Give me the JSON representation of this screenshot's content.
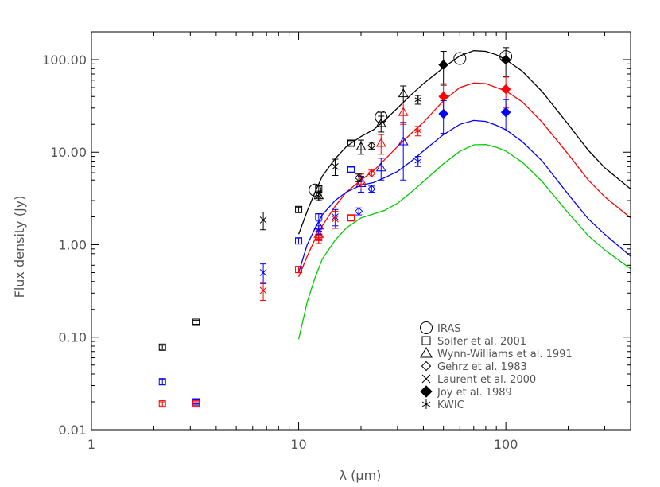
{
  "chart_data": {
    "type": "scatter",
    "title": "",
    "xlabel": "λ (μm)",
    "ylabel": "Flux density (Jy)",
    "xscale": "log",
    "yscale": "log",
    "xlim": [
      1,
      400
    ],
    "ylim": [
      0.01,
      200
    ],
    "x_ticks": [
      {
        "value": 1,
        "label": "1"
      },
      {
        "value": 10,
        "label": "10"
      },
      {
        "value": 100,
        "label": "100"
      }
    ],
    "y_ticks": [
      {
        "value": 0.01,
        "label": "0.01"
      },
      {
        "value": 0.1,
        "label": "0.10"
      },
      {
        "value": 1,
        "label": "1.00"
      },
      {
        "value": 10,
        "label": "10.00"
      },
      {
        "value": 100,
        "label": "100.00"
      }
    ],
    "grid": false,
    "legend_position": "bottom-right",
    "legend": [
      {
        "symbol": "circle",
        "label": "IRAS"
      },
      {
        "symbol": "square",
        "label": "Soifer et al. 2001"
      },
      {
        "symbol": "triangle",
        "label": "Wynn-Williams et al. 1991"
      },
      {
        "symbol": "diamond",
        "label": "Gehrz et al. 1983"
      },
      {
        "symbol": "cross",
        "label": "Laurent et al. 2000"
      },
      {
        "symbol": "filled-diamond",
        "label": "Joy et al. 1989"
      },
      {
        "symbol": "asterisk",
        "label": "KWIC"
      }
    ],
    "colors": {
      "black": "#000000",
      "red": "#ff0000",
      "blue": "#0000ff",
      "green": "#00cc00"
    },
    "curves": [
      {
        "color": "black",
        "x": [
          10,
          11,
          12,
          13,
          15,
          17,
          20,
          23,
          26,
          30,
          35,
          40,
          50,
          60,
          70,
          80,
          90,
          100,
          120,
          150,
          200,
          250,
          300,
          400
        ],
        "y": [
          1.3,
          2.3,
          3.7,
          5.5,
          8.5,
          11.5,
          14.8,
          17.5,
          22,
          30,
          42,
          55,
          82,
          110,
          125,
          123,
          113,
          100,
          75,
          45,
          20,
          10.5,
          6.8,
          4.0
        ]
      },
      {
        "color": "red",
        "x": [
          10,
          11,
          12,
          13,
          15,
          17,
          20,
          23,
          26,
          30,
          35,
          40,
          50,
          60,
          70,
          80,
          90,
          100,
          120,
          150,
          200,
          250,
          300,
          400
        ],
        "y": [
          0.45,
          0.75,
          1.15,
          1.6,
          2.6,
          3.7,
          5.0,
          6.3,
          8.3,
          11.5,
          16,
          21,
          36,
          50,
          56,
          55,
          50,
          46,
          35,
          21,
          9.5,
          5.0,
          3.3,
          1.95
        ]
      },
      {
        "color": "blue",
        "x": [
          10,
          11,
          12,
          13,
          15,
          17,
          20,
          23,
          26,
          30,
          35,
          40,
          50,
          60,
          70,
          80,
          90,
          100,
          120,
          150,
          200,
          250,
          300,
          400
        ],
        "y": [
          0.5,
          1.0,
          1.5,
          2.1,
          3.0,
          3.7,
          4.4,
          4.7,
          5.3,
          6.2,
          8.0,
          10.3,
          15.5,
          20,
          22,
          21.5,
          19.5,
          17.5,
          13,
          8,
          3.5,
          1.9,
          1.3,
          0.75
        ]
      },
      {
        "color": "green",
        "x": [
          10,
          11,
          12,
          13,
          15,
          17,
          20,
          23,
          26,
          30,
          35,
          40,
          50,
          60,
          70,
          80,
          90,
          100,
          120,
          150,
          200,
          250,
          300,
          400
        ],
        "y": [
          0.095,
          0.24,
          0.44,
          0.7,
          1.12,
          1.52,
          1.95,
          2.15,
          2.35,
          2.8,
          3.7,
          4.8,
          7.5,
          10.2,
          12.0,
          12.1,
          11.3,
          10.3,
          7.8,
          4.8,
          2.2,
          1.25,
          0.88,
          0.55
        ]
      }
    ],
    "points": [
      {
        "symbol": "square",
        "color": "black",
        "x": 2.2,
        "y": 0.078,
        "err": 0.004
      },
      {
        "symbol": "square",
        "color": "black",
        "x": 3.2,
        "y": 0.145,
        "err": 0.007
      },
      {
        "symbol": "square",
        "color": "black",
        "x": 10.0,
        "y": 2.4,
        "err": 0.15
      },
      {
        "symbol": "square",
        "color": "black",
        "x": 12.5,
        "y": 4.0,
        "err": 0.3
      },
      {
        "symbol": "square",
        "color": "black",
        "x": 17.9,
        "y": 12.5,
        "err": 0.8
      },
      {
        "symbol": "square",
        "color": "blue",
        "x": 2.2,
        "y": 0.033,
        "err": 0.002
      },
      {
        "symbol": "square",
        "color": "blue",
        "x": 3.2,
        "y": 0.02,
        "err": 0.001
      },
      {
        "symbol": "square",
        "color": "blue",
        "x": 10.0,
        "y": 1.1,
        "err": 0.08
      },
      {
        "symbol": "square",
        "color": "blue",
        "x": 12.5,
        "y": 2.0,
        "err": 0.15
      },
      {
        "symbol": "square",
        "color": "blue",
        "x": 17.9,
        "y": 6.5,
        "err": 0.4
      },
      {
        "symbol": "square",
        "color": "red",
        "x": 2.2,
        "y": 0.019,
        "err": 0.001
      },
      {
        "symbol": "square",
        "color": "red",
        "x": 3.2,
        "y": 0.019,
        "err": 0.001
      },
      {
        "symbol": "square",
        "color": "red",
        "x": 10.0,
        "y": 0.54,
        "err": 0.04
      },
      {
        "symbol": "square",
        "color": "red",
        "x": 12.5,
        "y": 1.2,
        "err": 0.08
      },
      {
        "symbol": "square",
        "color": "red",
        "x": 17.9,
        "y": 1.95,
        "err": 0.12
      },
      {
        "symbol": "circle",
        "color": "black",
        "x": 12.0,
        "y": 3.9,
        "err": 0
      },
      {
        "symbol": "circle",
        "color": "black",
        "x": 25.0,
        "y": 24,
        "err": 3
      },
      {
        "symbol": "circle",
        "color": "black",
        "x": 60.0,
        "y": 103,
        "err": 0
      },
      {
        "symbol": "circle",
        "color": "black",
        "x": 100.0,
        "y": 108,
        "err": 10
      },
      {
        "symbol": "triangle",
        "color": "black",
        "x": 12.5,
        "y": 3.4,
        "err": 0.4
      },
      {
        "symbol": "triangle",
        "color": "black",
        "x": 20.0,
        "y": 11.5,
        "err": 2
      },
      {
        "symbol": "triangle",
        "color": "black",
        "x": 25.0,
        "y": 20.5,
        "err": 4
      },
      {
        "symbol": "triangle",
        "color": "black",
        "x": 32.0,
        "y": 43,
        "err": 9
      },
      {
        "symbol": "triangle",
        "color": "blue",
        "x": 12.5,
        "y": 1.6,
        "err": 0.2
      },
      {
        "symbol": "triangle",
        "color": "blue",
        "x": 20.0,
        "y": 4.6,
        "err": 0.9
      },
      {
        "symbol": "triangle",
        "color": "blue",
        "x": 25.0,
        "y": 6.8,
        "err": 1.8
      },
      {
        "symbol": "triangle",
        "color": "blue",
        "x": 32.0,
        "y": 13,
        "err": 8
      },
      {
        "symbol": "triangle",
        "color": "red",
        "x": 12.5,
        "y": 1.3,
        "err": 0.15
      },
      {
        "symbol": "triangle",
        "color": "red",
        "x": 20.0,
        "y": 4.9,
        "err": 0.9
      },
      {
        "symbol": "triangle",
        "color": "red",
        "x": 25.0,
        "y": 12.5,
        "err": 3
      },
      {
        "symbol": "triangle",
        "color": "red",
        "x": 32.0,
        "y": 27,
        "err": 7
      },
      {
        "symbol": "diamond",
        "color": "black",
        "x": 19.5,
        "y": 5.3,
        "err": 0.5
      },
      {
        "symbol": "diamond",
        "color": "black",
        "x": 22.5,
        "y": 11.8,
        "err": 1
      },
      {
        "symbol": "diamond",
        "color": "blue",
        "x": 19.5,
        "y": 2.3,
        "err": 0.2
      },
      {
        "symbol": "diamond",
        "color": "blue",
        "x": 22.5,
        "y": 4.0,
        "err": 0.3
      },
      {
        "symbol": "diamond",
        "color": "red",
        "x": 22.5,
        "y": 5.9,
        "err": 0.5
      },
      {
        "symbol": "cross",
        "color": "black",
        "x": 6.75,
        "y": 1.85,
        "err": 0.4
      },
      {
        "symbol": "cross",
        "color": "black",
        "x": 15.0,
        "y": 7.0,
        "err": 1.4
      },
      {
        "symbol": "cross",
        "color": "blue",
        "x": 6.75,
        "y": 0.5,
        "err": 0.12
      },
      {
        "symbol": "cross",
        "color": "blue",
        "x": 15.0,
        "y": 2.0,
        "err": 0.4
      },
      {
        "symbol": "cross",
        "color": "red",
        "x": 6.75,
        "y": 0.32,
        "err": 0.07
      },
      {
        "symbol": "cross",
        "color": "red",
        "x": 15.0,
        "y": 1.9,
        "err": 0.4
      },
      {
        "symbol": "filled-diamond",
        "color": "black",
        "x": 50.0,
        "y": 88,
        "err": 35
      },
      {
        "symbol": "filled-diamond",
        "color": "black",
        "x": 100.0,
        "y": 100,
        "err": 35
      },
      {
        "symbol": "filled-diamond",
        "color": "red",
        "x": 50.0,
        "y": 40,
        "err": 15
      },
      {
        "symbol": "filled-diamond",
        "color": "red",
        "x": 100.0,
        "y": 48,
        "err": 18
      },
      {
        "symbol": "filled-diamond",
        "color": "blue",
        "x": 50.0,
        "y": 26,
        "err": 10
      },
      {
        "symbol": "filled-diamond",
        "color": "blue",
        "x": 100.0,
        "y": 27,
        "err": 10
      },
      {
        "symbol": "asterisk",
        "color": "black",
        "x": 12.5,
        "y": 3.3,
        "err": 0.3
      },
      {
        "symbol": "asterisk",
        "color": "black",
        "x": 37.7,
        "y": 37,
        "err": 4
      },
      {
        "symbol": "asterisk",
        "color": "blue",
        "x": 12.5,
        "y": 1.45,
        "err": 0.15
      },
      {
        "symbol": "asterisk",
        "color": "blue",
        "x": 37.7,
        "y": 8.0,
        "err": 1
      },
      {
        "symbol": "asterisk",
        "color": "red",
        "x": 12.5,
        "y": 1.15,
        "err": 0.12
      },
      {
        "symbol": "asterisk",
        "color": "red",
        "x": 37.7,
        "y": 17,
        "err": 2
      }
    ]
  }
}
